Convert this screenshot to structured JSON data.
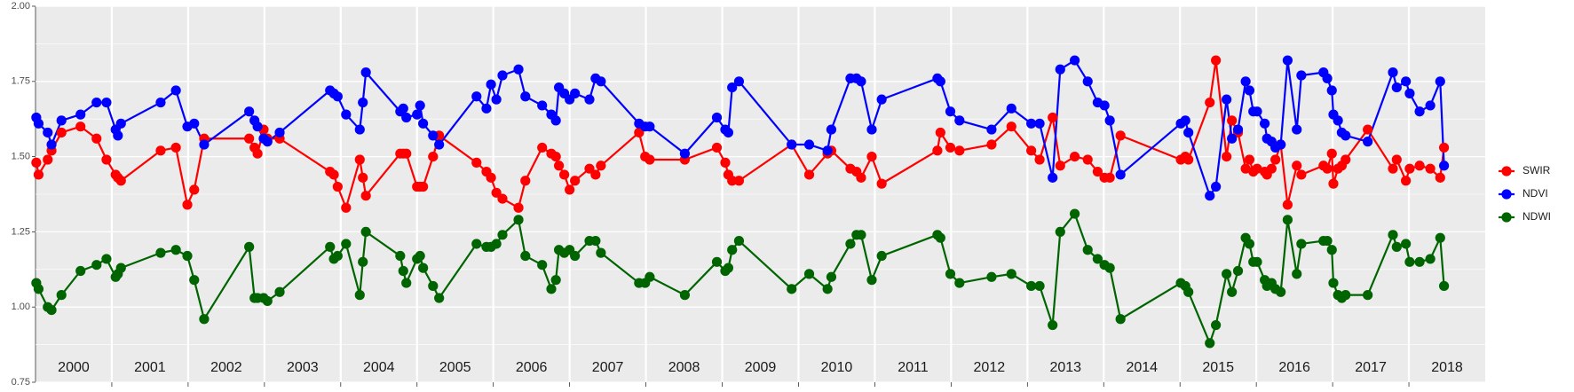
{
  "chart_data": {
    "type": "line",
    "x": [
      2000.01,
      2000.04,
      2000.16,
      2000.21,
      2000.34,
      2000.59,
      2000.8,
      2000.93,
      2001.05,
      2001.08,
      2001.12,
      2001.64,
      2001.84,
      2001.99,
      2002.08,
      2002.21,
      2002.8,
      2002.87,
      2002.91,
      2002.99,
      2003.04,
      2003.2,
      2003.86,
      2003.91,
      2003.96,
      2004.07,
      2004.25,
      2004.29,
      2004.33,
      2004.78,
      2004.82,
      2004.86,
      2005.0,
      2005.04,
      2005.08,
      2005.21,
      2005.29,
      2005.78,
      2005.91,
      2005.97,
      2006.04,
      2006.12,
      2006.33,
      2006.42,
      2006.64,
      2006.76,
      2006.82,
      2006.86,
      2006.93,
      2007.0,
      2007.07,
      2007.26,
      2007.34,
      2007.41,
      2007.91,
      2007.99,
      2008.05,
      2008.51,
      2008.93,
      2009.04,
      2009.08,
      2009.13,
      2009.22,
      2009.91,
      2010.14,
      2010.38,
      2010.43,
      2010.68,
      2010.76,
      2010.82,
      2010.96,
      2011.09,
      2011.82,
      2011.86,
      2011.99,
      2012.11,
      2012.53,
      2012.79,
      2013.05,
      2013.16,
      2013.33,
      2013.43,
      2013.62,
      2013.79,
      2013.92,
      2014.01,
      2014.08,
      2014.22,
      2015.01,
      2015.07,
      2015.11,
      2015.39,
      2015.47,
      2015.61,
      2015.68,
      2015.76,
      2015.86,
      2015.91,
      2015.96,
      2016.01,
      2016.11,
      2016.14,
      2016.2,
      2016.25,
      2016.32,
      2016.41,
      2016.53,
      2016.59,
      2016.88,
      2016.93,
      2016.99,
      2017.01,
      2017.07,
      2017.12,
      2017.17,
      2017.46,
      2017.79,
      2017.84,
      2017.96,
      2018.01,
      2018.14,
      2018.28,
      2018.41,
      2018.46
    ],
    "series": [
      {
        "name": "SWIR",
        "color": "#ff0000",
        "values": [
          1.48,
          1.44,
          1.49,
          1.52,
          1.58,
          1.6,
          1.56,
          1.49,
          1.44,
          1.43,
          1.42,
          1.52,
          1.53,
          1.34,
          1.39,
          1.56,
          1.56,
          1.53,
          1.51,
          1.59,
          1.56,
          1.56,
          1.45,
          1.44,
          1.4,
          1.33,
          1.49,
          1.43,
          1.37,
          1.51,
          1.51,
          1.51,
          1.4,
          1.4,
          1.4,
          1.5,
          1.57,
          1.48,
          1.45,
          1.43,
          1.38,
          1.36,
          1.33,
          1.42,
          1.53,
          1.51,
          1.5,
          1.47,
          1.44,
          1.39,
          1.42,
          1.46,
          1.44,
          1.47,
          1.58,
          1.5,
          1.49,
          1.49,
          1.53,
          1.48,
          1.44,
          1.42,
          1.42,
          1.54,
          1.44,
          1.51,
          1.52,
          1.46,
          1.45,
          1.43,
          1.5,
          1.41,
          1.52,
          1.58,
          1.53,
          1.52,
          1.54,
          1.6,
          1.52,
          1.49,
          1.63,
          1.47,
          1.5,
          1.49,
          1.45,
          1.43,
          1.43,
          1.57,
          1.49,
          1.5,
          1.49,
          1.68,
          1.82,
          1.5,
          1.62,
          1.58,
          1.46,
          1.49,
          1.45,
          1.46,
          1.45,
          1.44,
          1.46,
          1.49,
          1.54,
          1.34,
          1.47,
          1.44,
          1.47,
          1.46,
          1.51,
          1.41,
          1.46,
          1.47,
          1.49,
          1.59,
          1.46,
          1.49,
          1.42,
          1.46,
          1.47,
          1.46,
          1.43,
          1.53
        ]
      },
      {
        "name": "NDVI",
        "color": "#0000ff",
        "values": [
          1.63,
          1.61,
          1.58,
          1.54,
          1.62,
          1.64,
          1.68,
          1.68,
          1.59,
          1.57,
          1.61,
          1.68,
          1.72,
          1.6,
          1.61,
          1.54,
          1.65,
          1.62,
          1.6,
          1.56,
          1.55,
          1.58,
          1.72,
          1.71,
          1.7,
          1.64,
          1.59,
          1.68,
          1.78,
          1.65,
          1.66,
          1.63,
          1.64,
          1.67,
          1.61,
          1.57,
          1.54,
          1.7,
          1.66,
          1.74,
          1.69,
          1.77,
          1.79,
          1.7,
          1.67,
          1.64,
          1.62,
          1.73,
          1.71,
          1.69,
          1.71,
          1.69,
          1.76,
          1.75,
          1.61,
          1.6,
          1.6,
          1.51,
          1.63,
          1.59,
          1.58,
          1.73,
          1.75,
          1.54,
          1.54,
          1.52,
          1.59,
          1.76,
          1.76,
          1.75,
          1.59,
          1.69,
          1.76,
          1.75,
          1.65,
          1.62,
          1.59,
          1.66,
          1.61,
          1.61,
          1.43,
          1.79,
          1.82,
          1.75,
          1.68,
          1.67,
          1.62,
          1.44,
          1.61,
          1.62,
          1.58,
          1.37,
          1.4,
          1.69,
          1.56,
          1.59,
          1.75,
          1.72,
          1.65,
          1.65,
          1.61,
          1.56,
          1.55,
          1.53,
          1.54,
          1.82,
          1.59,
          1.77,
          1.78,
          1.76,
          1.72,
          1.64,
          1.62,
          1.58,
          1.57,
          1.55,
          1.78,
          1.73,
          1.75,
          1.71,
          1.65,
          1.67,
          1.75,
          1.47
        ]
      },
      {
        "name": "NDWI",
        "color": "#006400",
        "values": [
          1.08,
          1.06,
          1.0,
          0.99,
          1.04,
          1.12,
          1.14,
          1.16,
          1.1,
          1.11,
          1.13,
          1.18,
          1.19,
          1.17,
          1.09,
          0.96,
          1.2,
          1.03,
          1.03,
          1.03,
          1.02,
          1.05,
          1.2,
          1.16,
          1.17,
          1.21,
          1.04,
          1.15,
          1.25,
          1.17,
          1.12,
          1.08,
          1.16,
          1.17,
          1.13,
          1.07,
          1.03,
          1.21,
          1.2,
          1.2,
          1.21,
          1.24,
          1.29,
          1.17,
          1.14,
          1.06,
          1.09,
          1.19,
          1.18,
          1.19,
          1.17,
          1.22,
          1.22,
          1.18,
          1.08,
          1.08,
          1.1,
          1.04,
          1.15,
          1.12,
          1.13,
          1.19,
          1.22,
          1.06,
          1.11,
          1.06,
          1.1,
          1.21,
          1.24,
          1.24,
          1.09,
          1.17,
          1.24,
          1.23,
          1.11,
          1.08,
          1.1,
          1.11,
          1.07,
          1.07,
          0.94,
          1.25,
          1.31,
          1.19,
          1.16,
          1.14,
          1.13,
          0.96,
          1.08,
          1.07,
          1.05,
          0.88,
          0.94,
          1.11,
          1.05,
          1.12,
          1.23,
          1.21,
          1.15,
          1.15,
          1.09,
          1.07,
          1.08,
          1.06,
          1.05,
          1.29,
          1.11,
          1.21,
          1.22,
          1.22,
          1.19,
          1.08,
          1.04,
          1.03,
          1.04,
          1.04,
          1.24,
          1.2,
          1.21,
          1.15,
          1.15,
          1.16,
          1.23,
          1.07
        ]
      }
    ],
    "xlim": [
      2000,
      2019
    ],
    "xticks": [
      {
        "value": 2000.5,
        "label": "2000"
      },
      {
        "value": 2001.5,
        "label": "2001"
      },
      {
        "value": 2002.5,
        "label": "2002"
      },
      {
        "value": 2003.5,
        "label": "2003"
      },
      {
        "value": 2004.5,
        "label": "2004"
      },
      {
        "value": 2005.5,
        "label": "2005"
      },
      {
        "value": 2006.5,
        "label": "2006"
      },
      {
        "value": 2007.5,
        "label": "2007"
      },
      {
        "value": 2008.5,
        "label": "2008"
      },
      {
        "value": 2009.5,
        "label": "2009"
      },
      {
        "value": 2010.5,
        "label": "2010"
      },
      {
        "value": 2011.5,
        "label": "2011"
      },
      {
        "value": 2012.5,
        "label": "2012"
      },
      {
        "value": 2013.5,
        "label": "2013"
      },
      {
        "value": 2014.5,
        "label": "2014"
      },
      {
        "value": 2015.5,
        "label": "2015"
      },
      {
        "value": 2016.5,
        "label": "2016"
      },
      {
        "value": 2017.5,
        "label": "2017"
      },
      {
        "value": 2018.5,
        "label": "2018"
      }
    ],
    "xgrid": [
      2001,
      2002,
      2003,
      2004,
      2005,
      2006,
      2007,
      2008,
      2009,
      2010,
      2011,
      2012,
      2013,
      2014,
      2015,
      2016,
      2017,
      2018
    ],
    "ylim": [
      0.75,
      2.0
    ],
    "yticks": [
      {
        "value": 0.75,
        "label": "0.75"
      },
      {
        "value": 1.0,
        "label": "1.00"
      },
      {
        "value": 1.25,
        "label": "1.25"
      },
      {
        "value": 1.5,
        "label": "1.50"
      },
      {
        "value": 1.75,
        "label": "1.75"
      },
      {
        "value": 2.0,
        "label": "2.00"
      }
    ],
    "grid": true,
    "legend": "right"
  }
}
